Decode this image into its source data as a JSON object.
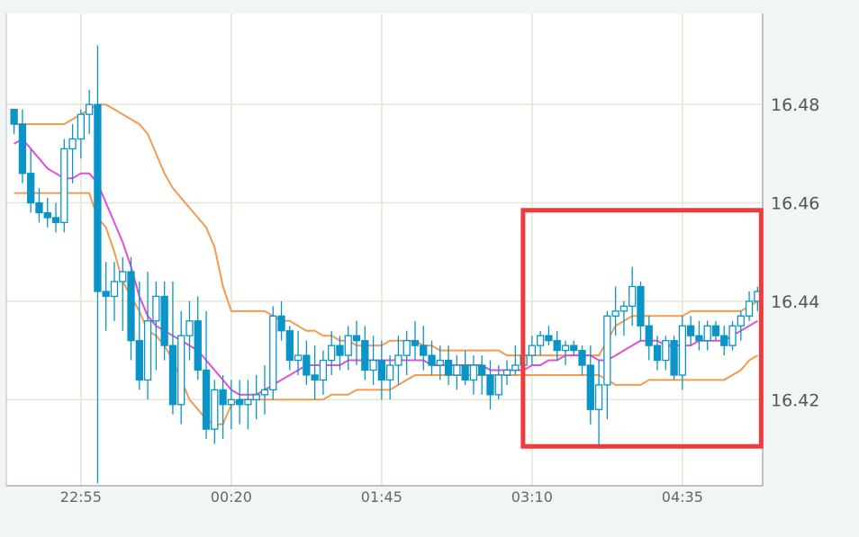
{
  "chart_data": {
    "type": "candlestick",
    "x_ticks": [
      "22:55",
      "00:20",
      "01:45",
      "03:10",
      "04:35"
    ],
    "y_ticks": [
      16.48,
      16.46,
      16.44,
      16.42
    ],
    "y_tick_labels": [
      "16.48",
      "16.46",
      "16.44",
      "16.42"
    ],
    "ylim": [
      16.4025,
      16.4985
    ],
    "grid": true,
    "candles": [
      [
        16.479,
        16.479,
        16.474,
        16.476
      ],
      [
        16.476,
        16.479,
        16.464,
        16.466
      ],
      [
        16.466,
        16.471,
        16.458,
        16.46
      ],
      [
        16.46,
        16.463,
        16.456,
        16.458
      ],
      [
        16.458,
        16.461,
        16.455,
        16.457
      ],
      [
        16.457,
        16.46,
        16.454,
        16.456
      ],
      [
        16.456,
        16.473,
        16.454,
        16.471
      ],
      [
        16.471,
        16.476,
        16.464,
        16.473
      ],
      [
        16.473,
        16.479,
        16.469,
        16.478
      ],
      [
        16.478,
        16.483,
        16.474,
        16.48
      ],
      [
        16.48,
        16.492,
        16.403,
        16.442
      ],
      [
        16.442,
        16.448,
        16.434,
        16.441
      ],
      [
        16.441,
        16.448,
        16.436,
        16.444
      ],
      [
        16.444,
        16.449,
        16.434,
        16.446
      ],
      [
        16.446,
        16.449,
        16.428,
        16.432
      ],
      [
        16.432,
        16.444,
        16.422,
        16.424
      ],
      [
        16.424,
        16.446,
        16.42,
        16.436
      ],
      [
        16.436,
        16.444,
        16.426,
        16.441
      ],
      [
        16.441,
        16.444,
        16.428,
        16.431
      ],
      [
        16.431,
        16.444,
        16.417,
        16.419
      ],
      [
        16.419,
        16.438,
        16.415,
        16.433
      ],
      [
        16.433,
        16.44,
        16.428,
        16.436
      ],
      [
        16.436,
        16.441,
        16.424,
        16.426
      ],
      [
        16.426,
        16.438,
        16.412,
        16.414
      ],
      [
        16.414,
        16.424,
        16.411,
        16.422
      ],
      [
        16.422,
        16.425,
        16.412,
        16.419
      ],
      [
        16.419,
        16.424,
        16.414,
        16.42
      ],
      [
        16.42,
        16.424,
        16.415,
        16.419
      ],
      [
        16.419,
        16.424,
        16.414,
        16.42
      ],
      [
        16.42,
        16.425,
        16.416,
        16.421
      ],
      [
        16.421,
        16.427,
        16.417,
        16.422
      ],
      [
        16.422,
        16.439,
        16.42,
        16.437
      ],
      [
        16.437,
        16.44,
        16.432,
        16.434
      ],
      [
        16.434,
        16.435,
        16.426,
        16.428
      ],
      [
        16.428,
        16.434,
        16.425,
        16.429
      ],
      [
        16.429,
        16.432,
        16.423,
        16.425
      ],
      [
        16.425,
        16.431,
        16.42,
        16.424
      ],
      [
        16.424,
        16.43,
        16.421,
        16.428
      ],
      [
        16.428,
        16.434,
        16.425,
        16.431
      ],
      [
        16.431,
        16.433,
        16.426,
        16.429
      ],
      [
        16.429,
        16.435,
        16.426,
        16.433
      ],
      [
        16.433,
        16.436,
        16.427,
        16.432
      ],
      [
        16.432,
        16.435,
        16.424,
        16.426
      ],
      [
        16.426,
        16.433,
        16.423,
        16.428
      ],
      [
        16.428,
        16.432,
        16.42,
        16.424
      ],
      [
        16.424,
        16.429,
        16.42,
        16.427
      ],
      [
        16.427,
        16.433,
        16.423,
        16.429
      ],
      [
        16.429,
        16.434,
        16.425,
        16.432
      ],
      [
        16.432,
        16.436,
        16.428,
        16.431
      ],
      [
        16.431,
        16.435,
        16.426,
        16.429
      ],
      [
        16.429,
        16.432,
        16.425,
        16.427
      ],
      [
        16.427,
        16.431,
        16.424,
        16.428
      ],
      [
        16.428,
        16.431,
        16.423,
        16.425
      ],
      [
        16.425,
        16.429,
        16.422,
        16.427
      ],
      [
        16.427,
        16.43,
        16.423,
        16.424
      ],
      [
        16.424,
        16.429,
        16.421,
        16.427
      ],
      [
        16.427,
        16.429,
        16.421,
        16.425
      ],
      [
        16.425,
        16.428,
        16.418,
        16.421
      ],
      [
        16.421,
        16.427,
        16.42,
        16.425
      ],
      [
        16.425,
        16.428,
        16.423,
        16.426
      ],
      [
        16.426,
        16.431,
        16.425,
        16.427
      ],
      [
        16.427,
        16.431,
        16.425,
        16.429
      ],
      [
        16.429,
        16.433,
        16.427,
        16.431
      ],
      [
        16.431,
        16.434,
        16.429,
        16.433
      ],
      [
        16.433,
        16.435,
        16.431,
        16.432
      ],
      [
        16.432,
        16.434,
        16.428,
        16.43
      ],
      [
        16.43,
        16.432,
        16.427,
        16.431
      ],
      [
        16.431,
        16.432,
        16.429,
        16.43
      ],
      [
        16.43,
        16.431,
        16.425,
        16.427
      ],
      [
        16.427,
        16.431,
        16.415,
        16.418
      ],
      [
        16.418,
        16.428,
        16.41,
        16.423
      ],
      [
        16.423,
        16.438,
        16.416,
        16.437
      ],
      [
        16.437,
        16.443,
        16.433,
        16.438
      ],
      [
        16.438,
        16.44,
        16.433,
        16.439
      ],
      [
        16.439,
        16.447,
        16.435,
        16.443
      ],
      [
        16.443,
        16.444,
        16.432,
        16.435
      ],
      [
        16.435,
        16.437,
        16.428,
        16.431
      ],
      [
        16.431,
        16.433,
        16.426,
        16.428
      ],
      [
        16.428,
        16.433,
        16.426,
        16.432
      ],
      [
        16.432,
        16.433,
        16.424,
        16.425
      ],
      [
        16.425,
        16.437,
        16.422,
        16.435
      ],
      [
        16.435,
        16.437,
        16.431,
        16.433
      ],
      [
        16.433,
        16.436,
        16.43,
        16.432
      ],
      [
        16.432,
        16.436,
        16.43,
        16.435
      ],
      [
        16.435,
        16.436,
        16.432,
        16.433
      ],
      [
        16.433,
        16.435,
        16.429,
        16.431
      ],
      [
        16.431,
        16.436,
        16.43,
        16.435
      ],
      [
        16.435,
        16.438,
        16.432,
        16.437
      ],
      [
        16.437,
        16.442,
        16.436,
        16.44
      ],
      [
        16.44,
        16.443,
        16.438,
        16.442
      ]
    ],
    "upper_band": [
      16.476,
      16.476,
      16.476,
      16.476,
      16.476,
      16.476,
      16.476,
      16.477,
      16.478,
      16.479,
      16.48,
      16.48,
      16.479,
      16.478,
      16.477,
      16.476,
      16.474,
      16.47,
      16.466,
      16.463,
      16.461,
      16.459,
      16.457,
      16.455,
      16.451,
      16.443,
      16.438,
      16.438,
      16.438,
      16.438,
      16.438,
      16.437,
      16.436,
      16.436,
      16.435,
      16.434,
      16.434,
      16.433,
      16.433,
      16.432,
      16.432,
      16.431,
      16.431,
      16.431,
      16.431,
      16.432,
      16.432,
      16.432,
      16.432,
      16.431,
      16.431,
      16.43,
      16.43,
      16.43,
      16.43,
      16.43,
      16.43,
      16.43,
      16.43,
      16.429,
      16.429,
      16.429,
      16.429,
      16.429,
      16.429,
      16.429,
      16.429,
      16.429,
      16.429,
      16.429,
      16.429,
      16.432,
      16.435,
      16.436,
      16.437,
      16.437,
      16.437,
      16.437,
      16.437,
      16.437,
      16.437,
      16.438,
      16.438,
      16.438,
      16.438,
      16.438,
      16.438,
      16.438,
      16.439,
      16.44
    ],
    "lower_band": [
      16.462,
      16.462,
      16.462,
      16.462,
      16.462,
      16.462,
      16.462,
      16.462,
      16.462,
      16.462,
      16.457,
      16.455,
      16.45,
      16.444,
      16.441,
      16.438,
      16.434,
      16.433,
      16.431,
      16.428,
      16.424,
      16.42,
      16.418,
      16.416,
      16.415,
      16.415,
      16.419,
      16.42,
      16.42,
      16.42,
      16.42,
      16.42,
      16.42,
      16.42,
      16.42,
      16.42,
      16.42,
      16.42,
      16.421,
      16.421,
      16.421,
      16.422,
      16.422,
      16.422,
      16.422,
      16.422,
      16.423,
      16.424,
      16.425,
      16.425,
      16.425,
      16.425,
      16.425,
      16.425,
      16.425,
      16.425,
      16.425,
      16.425,
      16.425,
      16.425,
      16.425,
      16.425,
      16.425,
      16.425,
      16.425,
      16.425,
      16.425,
      16.425,
      16.425,
      16.425,
      16.425,
      16.424,
      16.423,
      16.423,
      16.423,
      16.423,
      16.424,
      16.424,
      16.424,
      16.424,
      16.424,
      16.424,
      16.424,
      16.424,
      16.424,
      16.424,
      16.425,
      16.426,
      16.428,
      16.429
    ],
    "moving_average": [
      16.472,
      16.473,
      16.471,
      16.469,
      16.467,
      16.466,
      16.465,
      16.465,
      16.466,
      16.466,
      16.464,
      16.46,
      16.456,
      16.452,
      16.447,
      16.441,
      16.437,
      16.435,
      16.434,
      16.433,
      16.432,
      16.431,
      16.43,
      16.428,
      16.426,
      16.424,
      16.422,
      16.421,
      16.421,
      16.421,
      16.422,
      16.423,
      16.424,
      16.425,
      16.426,
      16.427,
      16.427,
      16.427,
      16.427,
      16.427,
      16.428,
      16.428,
      16.428,
      16.428,
      16.428,
      16.428,
      16.428,
      16.428,
      16.428,
      16.428,
      16.427,
      16.427,
      16.427,
      16.427,
      16.427,
      16.427,
      16.427,
      16.426,
      16.426,
      16.426,
      16.426,
      16.426,
      16.427,
      16.427,
      16.428,
      16.428,
      16.429,
      16.429,
      16.429,
      16.429,
      16.428,
      16.428,
      16.429,
      16.43,
      16.431,
      16.432,
      16.432,
      16.432,
      16.431,
      16.431,
      16.431,
      16.431,
      16.432,
      16.432,
      16.432,
      16.432,
      16.433,
      16.434,
      16.435,
      16.436
    ],
    "colors": {
      "up_candle": "#ffffff",
      "down_candle": "#0a94c8",
      "candle_outline": "#0a94c8",
      "bands": "#f59a4f",
      "moving_average": "#e04fd8",
      "grid": "#e1e8d3",
      "highlight": "#ef3b3b",
      "plot_background": "#ffffff"
    },
    "highlight_region": {
      "x_from_index": 62,
      "x_to_index": 89,
      "y_from": 16.4105,
      "y_to": 16.4585
    }
  }
}
